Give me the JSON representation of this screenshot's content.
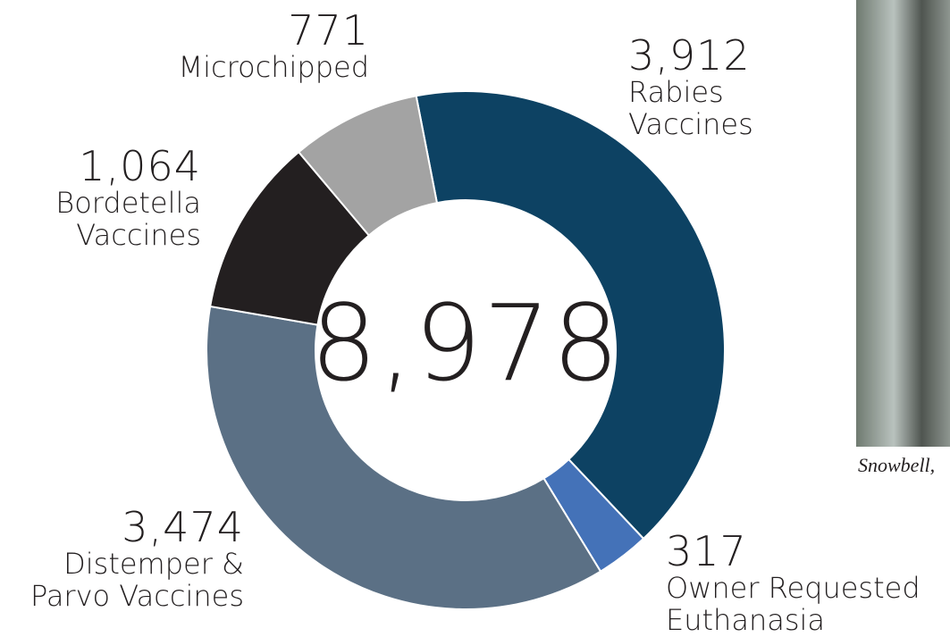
{
  "chart_data": {
    "type": "donut",
    "center_text": "8,978",
    "categories": [
      "Rabies\nVaccines",
      "Owner Requested\nEuthanasia",
      "Distemper &\nParvo Vaccines",
      "Bordetella\nVaccines",
      "Microchipped"
    ],
    "values": [
      3912,
      317,
      3474,
      1064,
      771
    ],
    "value_labels": [
      "3,912",
      "317",
      "3,474",
      "1,064",
      "771"
    ],
    "colors": [
      "#0d4263",
      "#4472b8",
      "#5b7085",
      "#231f20",
      "#a3a3a3"
    ],
    "photo_caption": "Snowbell,"
  }
}
